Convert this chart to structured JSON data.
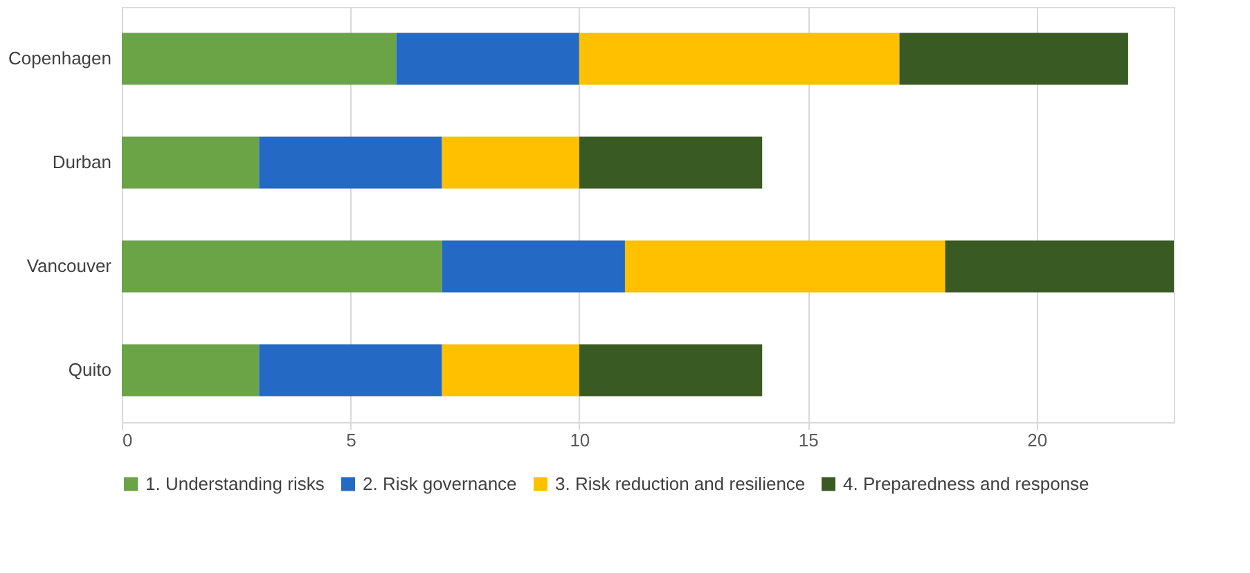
{
  "chart_data": {
    "type": "bar",
    "orientation": "horizontal",
    "stacked": true,
    "categories": [
      "Copenhagen",
      "Durban",
      "Vancouver",
      "Quito"
    ],
    "series": [
      {
        "name": "1. Understanding risks",
        "color": "#6aa446",
        "values": [
          6,
          3,
          7,
          3
        ]
      },
      {
        "name": "2. Risk governance",
        "color": "#2469c4",
        "values": [
          4,
          4,
          4,
          4
        ]
      },
      {
        "name": "3. Risk reduction and resilience",
        "color": "#ffc000",
        "values": [
          7,
          3,
          7,
          3
        ]
      },
      {
        "name": "4. Preparedness and response",
        "color": "#3a5a23",
        "values": [
          5,
          4,
          5,
          4
        ]
      }
    ],
    "xlim": [
      0,
      23
    ],
    "xticks": [
      0,
      5,
      10,
      15,
      20
    ],
    "grid": "x",
    "legend": "bottom"
  }
}
